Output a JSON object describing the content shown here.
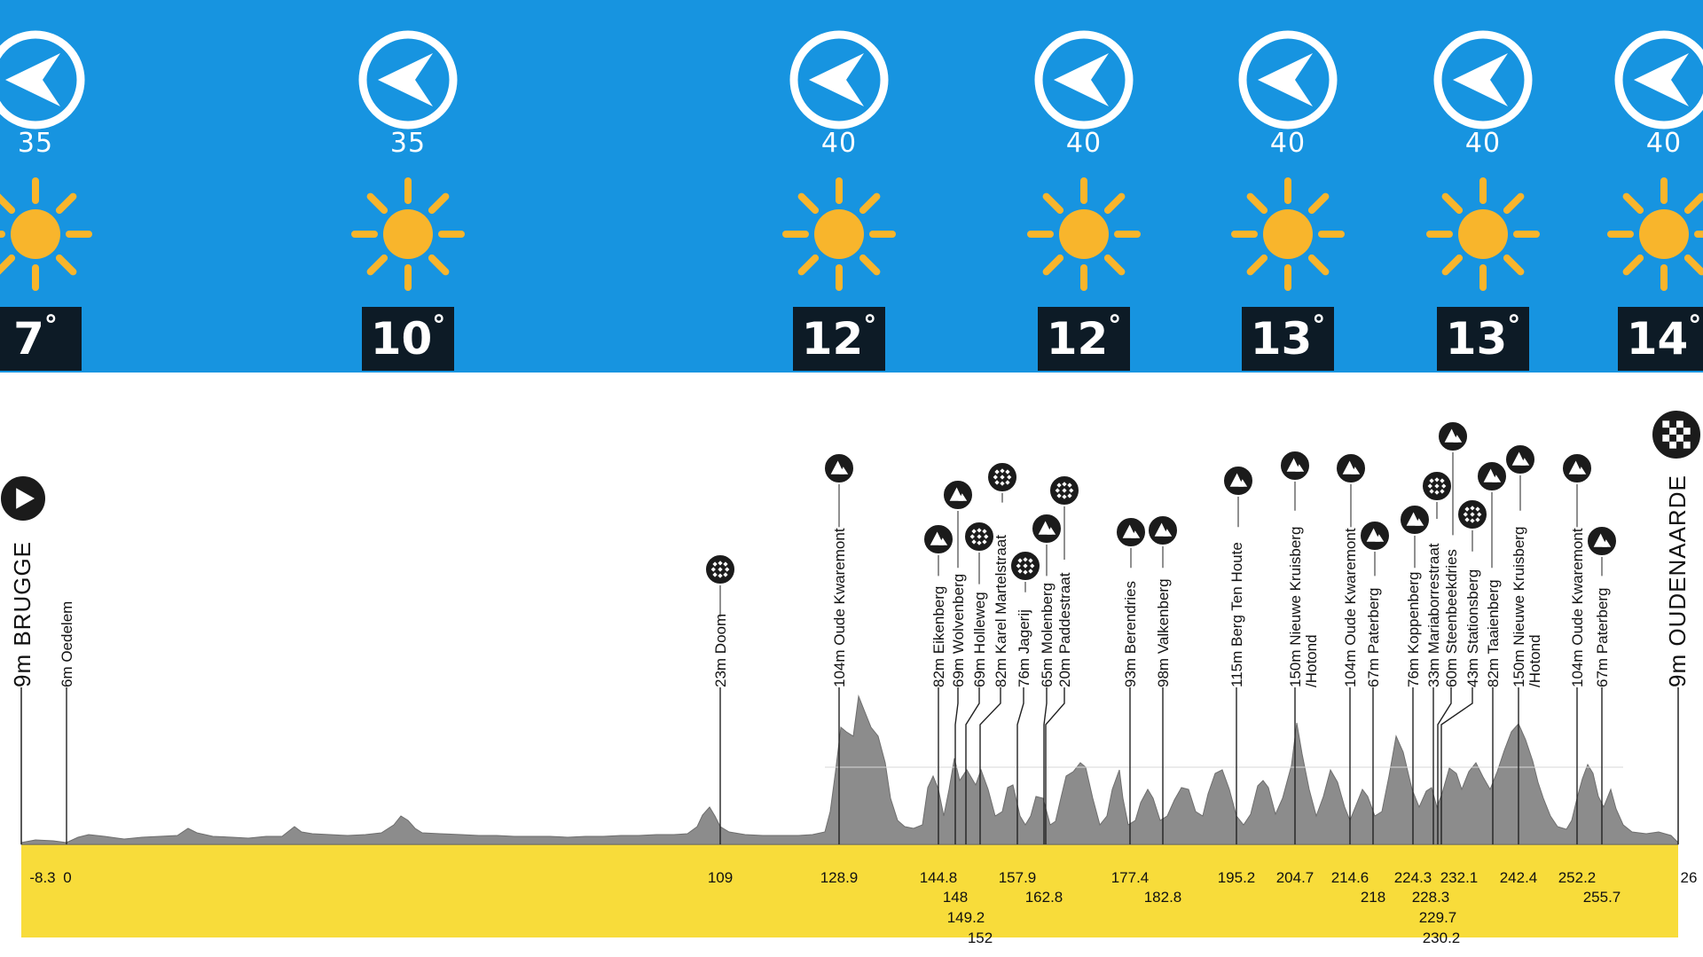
{
  "weather": [
    {
      "wind": "35",
      "temp": "7",
      "deg": "°"
    },
    {
      "wind": "35",
      "temp": "10",
      "deg": "°"
    },
    {
      "wind": "40",
      "temp": "12",
      "deg": "°"
    },
    {
      "wind": "40",
      "temp": "12",
      "deg": "°"
    },
    {
      "wind": "40",
      "temp": "13",
      "deg": "°"
    },
    {
      "wind": "40",
      "temp": "13",
      "deg": "°"
    },
    {
      "wind": "40",
      "temp": "14",
      "deg": "°"
    }
  ],
  "start": {
    "label": "9m BRUGGE"
  },
  "finish": {
    "label": "9m OUDENAARDE"
  },
  "waypoints": [
    {
      "label": "6m Oedelem",
      "icon": "none"
    },
    {
      "label": "23m Doom",
      "icon": "cobbles"
    },
    {
      "label": "104m Oude Kwaremont",
      "icon": "climb"
    },
    {
      "label": "82m Eikenberg",
      "icon": "climb"
    },
    {
      "label": "69m Wolvenberg",
      "icon": "climb"
    },
    {
      "label": "69m Holleweg",
      "icon": "cobbles"
    },
    {
      "label": "82m Karel Martelstraat",
      "icon": "cobbles"
    },
    {
      "label": "76m Jagerij",
      "icon": "cobbles"
    },
    {
      "label": "65m Molenberg",
      "icon": "climb"
    },
    {
      "label": "20m Paddestraat",
      "icon": "cobbles"
    },
    {
      "label": "93m Berendries",
      "icon": "climb"
    },
    {
      "label": "98m Valkenberg",
      "icon": "climb"
    },
    {
      "label": "115m Berg Ten Houte",
      "icon": "climb"
    },
    {
      "label": "150m Nieuwe Kruisberg",
      "label2": "/Hotond",
      "icon": "climb"
    },
    {
      "label": "104m Oude Kwaremont",
      "icon": "climb"
    },
    {
      "label": "67m Paterberg",
      "icon": "climb"
    },
    {
      "label": "76m Koppenberg",
      "icon": "climb"
    },
    {
      "label": "33m Mariaborrestraat",
      "icon": "cobbles"
    },
    {
      "label": "60m Steenbeekdries",
      "icon": "climb"
    },
    {
      "label": "43m Stationsberg",
      "icon": "cobbles"
    },
    {
      "label": "82m Taaienberg",
      "icon": "climb"
    },
    {
      "label": "150m Nieuwe Kruisberg",
      "label2": "/Hotond",
      "icon": "climb"
    },
    {
      "label": "104m Oude Kwaremont",
      "icon": "climb"
    },
    {
      "label": "67m Paterberg",
      "icon": "climb"
    }
  ],
  "km_markers": [
    "-8.3",
    "0",
    "109",
    "128.9",
    "144.8",
    "148",
    "149.2",
    "152",
    "157.9",
    "162.8",
    "177.4",
    "182.8",
    "195.2",
    "204.7",
    "214.6",
    "218",
    "224.3",
    "228.3",
    "229.7",
    "230.2",
    "232.1",
    "242.4",
    "252.2",
    "255.7",
    "26"
  ],
  "colors": {
    "sky": "#1794e0",
    "sun": "#f8b52c",
    "profile": "#8c8c8c",
    "base": "#f8dc3a",
    "temp_box": "#0d1b26"
  }
}
